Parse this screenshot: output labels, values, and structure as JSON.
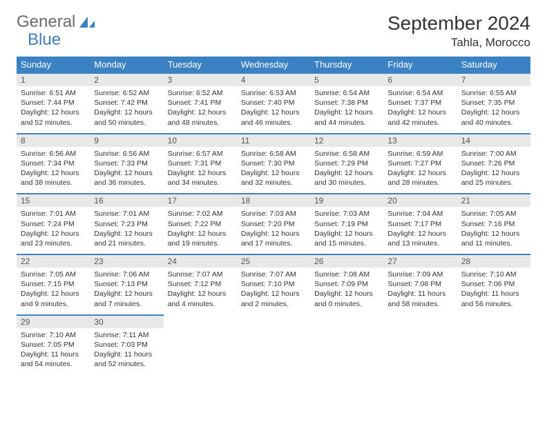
{
  "brand": {
    "word1": "General",
    "word2": "Blue"
  },
  "title": "September 2024",
  "location": "Tahla, Morocco",
  "colors": {
    "accent": "#3b82c4",
    "header_bg": "#3b82c4",
    "header_text": "#ffffff",
    "daynum_bg": "#e8e8e8",
    "text": "#333333",
    "logo_gray": "#6b6b6b"
  },
  "dayNames": [
    "Sunday",
    "Monday",
    "Tuesday",
    "Wednesday",
    "Thursday",
    "Friday",
    "Saturday"
  ],
  "weeks": [
    [
      {
        "n": 1,
        "sr": "6:51 AM",
        "ss": "7:44 PM",
        "dl": "12 hours and 52 minutes."
      },
      {
        "n": 2,
        "sr": "6:52 AM",
        "ss": "7:42 PM",
        "dl": "12 hours and 50 minutes."
      },
      {
        "n": 3,
        "sr": "6:52 AM",
        "ss": "7:41 PM",
        "dl": "12 hours and 48 minutes."
      },
      {
        "n": 4,
        "sr": "6:53 AM",
        "ss": "7:40 PM",
        "dl": "12 hours and 46 minutes."
      },
      {
        "n": 5,
        "sr": "6:54 AM",
        "ss": "7:38 PM",
        "dl": "12 hours and 44 minutes."
      },
      {
        "n": 6,
        "sr": "6:54 AM",
        "ss": "7:37 PM",
        "dl": "12 hours and 42 minutes."
      },
      {
        "n": 7,
        "sr": "6:55 AM",
        "ss": "7:35 PM",
        "dl": "12 hours and 40 minutes."
      }
    ],
    [
      {
        "n": 8,
        "sr": "6:56 AM",
        "ss": "7:34 PM",
        "dl": "12 hours and 38 minutes."
      },
      {
        "n": 9,
        "sr": "6:56 AM",
        "ss": "7:33 PM",
        "dl": "12 hours and 36 minutes."
      },
      {
        "n": 10,
        "sr": "6:57 AM",
        "ss": "7:31 PM",
        "dl": "12 hours and 34 minutes."
      },
      {
        "n": 11,
        "sr": "6:58 AM",
        "ss": "7:30 PM",
        "dl": "12 hours and 32 minutes."
      },
      {
        "n": 12,
        "sr": "6:58 AM",
        "ss": "7:29 PM",
        "dl": "12 hours and 30 minutes."
      },
      {
        "n": 13,
        "sr": "6:59 AM",
        "ss": "7:27 PM",
        "dl": "12 hours and 28 minutes."
      },
      {
        "n": 14,
        "sr": "7:00 AM",
        "ss": "7:26 PM",
        "dl": "12 hours and 25 minutes."
      }
    ],
    [
      {
        "n": 15,
        "sr": "7:01 AM",
        "ss": "7:24 PM",
        "dl": "12 hours and 23 minutes."
      },
      {
        "n": 16,
        "sr": "7:01 AM",
        "ss": "7:23 PM",
        "dl": "12 hours and 21 minutes."
      },
      {
        "n": 17,
        "sr": "7:02 AM",
        "ss": "7:22 PM",
        "dl": "12 hours and 19 minutes."
      },
      {
        "n": 18,
        "sr": "7:03 AM",
        "ss": "7:20 PM",
        "dl": "12 hours and 17 minutes."
      },
      {
        "n": 19,
        "sr": "7:03 AM",
        "ss": "7:19 PM",
        "dl": "12 hours and 15 minutes."
      },
      {
        "n": 20,
        "sr": "7:04 AM",
        "ss": "7:17 PM",
        "dl": "12 hours and 13 minutes."
      },
      {
        "n": 21,
        "sr": "7:05 AM",
        "ss": "7:16 PM",
        "dl": "12 hours and 11 minutes."
      }
    ],
    [
      {
        "n": 22,
        "sr": "7:05 AM",
        "ss": "7:15 PM",
        "dl": "12 hours and 9 minutes."
      },
      {
        "n": 23,
        "sr": "7:06 AM",
        "ss": "7:13 PM",
        "dl": "12 hours and 7 minutes."
      },
      {
        "n": 24,
        "sr": "7:07 AM",
        "ss": "7:12 PM",
        "dl": "12 hours and 4 minutes."
      },
      {
        "n": 25,
        "sr": "7:07 AM",
        "ss": "7:10 PM",
        "dl": "12 hours and 2 minutes."
      },
      {
        "n": 26,
        "sr": "7:08 AM",
        "ss": "7:09 PM",
        "dl": "12 hours and 0 minutes."
      },
      {
        "n": 27,
        "sr": "7:09 AM",
        "ss": "7:08 PM",
        "dl": "11 hours and 58 minutes."
      },
      {
        "n": 28,
        "sr": "7:10 AM",
        "ss": "7:06 PM",
        "dl": "11 hours and 56 minutes."
      }
    ],
    [
      {
        "n": 29,
        "sr": "7:10 AM",
        "ss": "7:05 PM",
        "dl": "11 hours and 54 minutes."
      },
      {
        "n": 30,
        "sr": "7:11 AM",
        "ss": "7:03 PM",
        "dl": "11 hours and 52 minutes."
      },
      null,
      null,
      null,
      null,
      null
    ]
  ],
  "labels": {
    "sunrise": "Sunrise:",
    "sunset": "Sunset:",
    "daylight": "Daylight:"
  }
}
